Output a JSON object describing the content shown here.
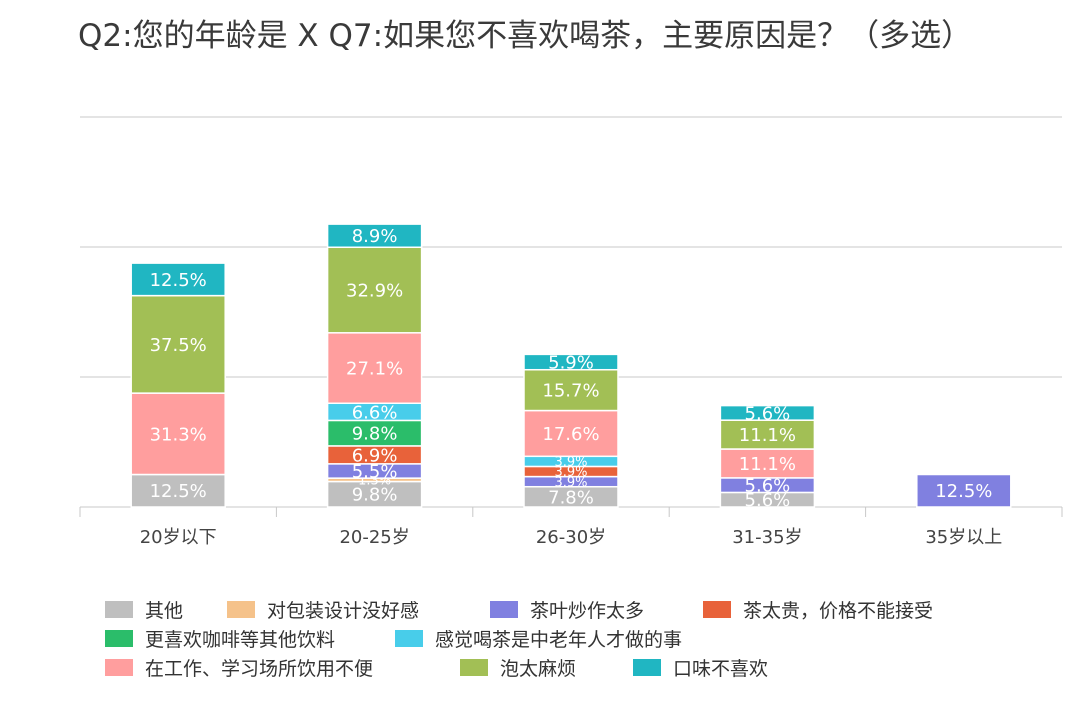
{
  "title": "Q2:您的年龄是 X Q7:如果您不喜欢喝茶，主要原因是？（多选）",
  "chart_data": {
    "type": "bar",
    "stacked": true,
    "categories": [
      "20岁以下",
      "20-25岁",
      "26-30岁",
      "31-35岁",
      "35岁以上"
    ],
    "series": [
      {
        "name": "其他",
        "color": "#bfbfbf",
        "values": [
          12.5,
          9.8,
          7.8,
          5.6,
          0
        ]
      },
      {
        "name": "对包装设计没好感",
        "color": "#f5c28a",
        "values": [
          0,
          1.3,
          0,
          0,
          0
        ]
      },
      {
        "name": "茶叶炒作太多",
        "color": "#8080e0",
        "values": [
          0,
          5.5,
          3.9,
          5.6,
          12.5
        ]
      },
      {
        "name": "茶太贵，价格不能接受",
        "color": "#e8623a",
        "values": [
          0,
          6.9,
          3.9,
          0,
          0
        ]
      },
      {
        "name": "更喜欢咖啡等其他饮料",
        "color": "#2bbd6a",
        "values": [
          0,
          9.8,
          0,
          0,
          0
        ]
      },
      {
        "name": "感觉喝茶是中老年人才做的事",
        "color": "#48cdea",
        "values": [
          0,
          6.6,
          3.9,
          0,
          0
        ]
      },
      {
        "name": "在工作、学习场所饮用不便",
        "color": "#ff9e9e",
        "values": [
          31.3,
          27.1,
          17.6,
          11.1,
          0
        ]
      },
      {
        "name": "泡太麻烦",
        "color": "#a2bf55",
        "values": [
          37.5,
          32.9,
          15.7,
          11.1,
          0
        ]
      },
      {
        "name": "口味不喜欢",
        "color": "#20b6c2",
        "values": [
          12.5,
          8.9,
          5.9,
          5.6,
          0
        ]
      }
    ],
    "data_labels": [
      [
        "12.5%",
        "",
        "",
        "",
        "",
        "",
        "31.3%",
        "37.5%",
        "12.5%"
      ],
      [
        "9.8%",
        "1.3%",
        "5.5%",
        "6.9%",
        "9.8%",
        "6.6%",
        "27.1%",
        "32.9%",
        "8.9%"
      ],
      [
        "7.8%",
        "",
        "3.9%",
        "3.9%",
        "",
        "3.9%",
        "17.6%",
        "15.7%",
        "5.9%"
      ],
      [
        "5.6%",
        "",
        "5.6%",
        "",
        "",
        "",
        "11.1%",
        "11.1%",
        "5.6%"
      ],
      [
        "",
        "",
        "12.5%",
        "",
        "",
        "",
        "",
        "",
        ""
      ]
    ],
    "ylim": [
      0,
      150
    ],
    "gridlines": [
      50,
      100,
      150
    ],
    "legend_position": "bottom",
    "xlabel": "",
    "ylabel": ""
  }
}
